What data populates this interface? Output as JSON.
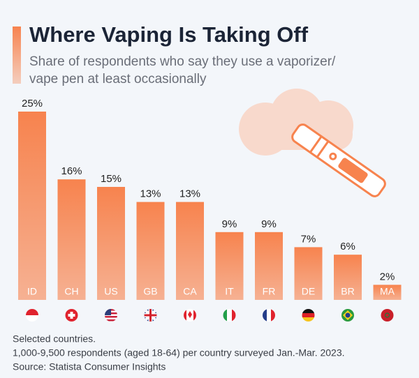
{
  "title": "Where Vaping Is Taking Off",
  "subtitle": [
    "Share of respondents who say they use a vaporizer/",
    "vape pen at least occasionally"
  ],
  "notes": [
    "Selected countries.",
    "1,000-9,500 respondents (aged 18-64) per country surveyed Jan.-Mar. 2023.",
    "Source: Statista Consumer Insights"
  ],
  "chart_data": {
    "type": "bar",
    "color": "#f7834e",
    "categories": [
      "ID",
      "CH",
      "US",
      "GB",
      "CA",
      "IT",
      "FR",
      "DE",
      "BR",
      "MA"
    ],
    "values": [
      25,
      16,
      15,
      13,
      13,
      9,
      9,
      7,
      6,
      2
    ],
    "value_labels": [
      "25%",
      "16%",
      "15%",
      "13%",
      "13%",
      "9%",
      "9%",
      "7%",
      "6%",
      "2%"
    ]
  }
}
